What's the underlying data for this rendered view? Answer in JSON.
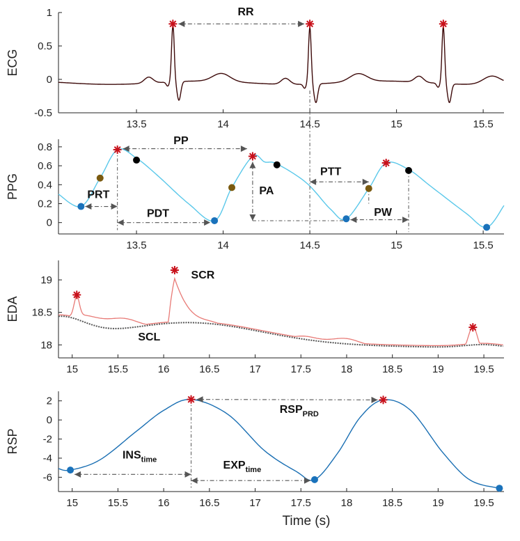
{
  "chart_data": [
    {
      "type": "line",
      "id": "ecg",
      "ylabel": "ECG",
      "xlim": [
        13.05,
        15.62
      ],
      "ylim": [
        -0.5,
        1
      ],
      "xticks": [
        "13.5",
        "14",
        "14.5",
        "15",
        "15.5"
      ],
      "xtick_values": [
        13.5,
        14,
        14.5,
        15,
        15.5
      ],
      "yticks": [
        "-0.5",
        "0",
        "0.5",
        "1"
      ],
      "ytick_values": [
        -0.5,
        0,
        0.5,
        1
      ],
      "color": "#3d0a0a",
      "r_peaks_x": [
        13.71,
        14.5,
        15.27
      ],
      "r_peak_y": 0.83,
      "annotations": [
        {
          "label": "RR",
          "x": 14.1,
          "y": 0.96
        }
      ]
    },
    {
      "type": "line",
      "id": "ppg",
      "ylabel": "PPG",
      "xlim": [
        13.05,
        15.62
      ],
      "ylim": [
        -0.12,
        0.88
      ],
      "xticks": [
        "13.5",
        "14",
        "14.5",
        "15",
        "15.5"
      ],
      "xtick_values": [
        13.5,
        14,
        14.5,
        15,
        15.5
      ],
      "yticks": [
        "0",
        "0.2",
        "0.4",
        "0.6",
        "0.8"
      ],
      "ytick_values": [
        0,
        0.2,
        0.4,
        0.6,
        0.8
      ],
      "color": "#5ac8ea",
      "feet": [
        {
          "x": 13.18,
          "y": 0.17
        },
        {
          "x": 13.95,
          "y": 0.02
        },
        {
          "x": 14.71,
          "y": 0.04
        },
        {
          "x": 15.52,
          "y": -0.05
        }
      ],
      "peaks": [
        {
          "x": 13.39,
          "y": 0.77
        },
        {
          "x": 14.17,
          "y": 0.7
        },
        {
          "x": 14.94,
          "y": 0.63
        }
      ],
      "dicrotic_notches": [
        {
          "x": 13.5,
          "y": 0.66
        },
        {
          "x": 14.31,
          "y": 0.61
        },
        {
          "x": 15.07,
          "y": 0.55
        }
      ],
      "mid_upstroke": [
        {
          "x": 13.29,
          "y": 0.47
        },
        {
          "x": 14.05,
          "y": 0.37
        },
        {
          "x": 14.84,
          "y": 0.36
        }
      ],
      "annotations": [
        {
          "label": "PP",
          "x": 13.77,
          "y": 0.82
        },
        {
          "label": "PRT",
          "x": 13.26,
          "y": 0.3
        },
        {
          "label": "PDT",
          "x": 13.66,
          "y": 0.11
        },
        {
          "label": "PA",
          "x": 14.24,
          "y": 0.32
        },
        {
          "label": "PTT",
          "x": 14.67,
          "y": 0.5
        },
        {
          "label": "PW",
          "x": 14.9,
          "y": 0.11
        }
      ]
    },
    {
      "type": "line",
      "id": "eda",
      "ylabel": "EDA",
      "xlim": [
        14.85,
        19.72
      ],
      "ylim": [
        17.8,
        19.3
      ],
      "xticks": [
        "15",
        "15.5",
        "16",
        "16.5",
        "17",
        "17.5",
        "18",
        "18.5",
        "19",
        "19.5"
      ],
      "xtick_values": [
        15,
        15.5,
        16,
        16.5,
        17,
        17.5,
        18,
        18.5,
        19,
        19.5
      ],
      "yticks": [
        "18",
        "18.5",
        "19"
      ],
      "ytick_values": [
        18,
        18.5,
        19
      ],
      "series": [
        {
          "name": "EDA",
          "color": "#e87a76"
        },
        {
          "name": "SCL",
          "color": "#555555"
        }
      ],
      "scr_peaks": [
        {
          "x": 15.05,
          "y": 18.77
        },
        {
          "x": 16.12,
          "y": 19.15
        },
        {
          "x": 19.38,
          "y": 18.27
        }
      ],
      "annotations": [
        {
          "label": "SCR",
          "x": 16.37,
          "y": 19.02
        },
        {
          "label": "SCL",
          "x": 15.75,
          "y": 18.07
        }
      ]
    },
    {
      "type": "line",
      "id": "rsp",
      "ylabel": "RSP",
      "xlabel": "Time (s)",
      "xlim": [
        14.85,
        19.72
      ],
      "ylim": [
        -7.5,
        3
      ],
      "xticks": [
        "15",
        "15.5",
        "16",
        "16.5",
        "17",
        "17.5",
        "18",
        "18.5",
        "19",
        "19.5"
      ],
      "xtick_values": [
        15,
        15.5,
        16,
        16.5,
        17,
        17.5,
        18,
        18.5,
        19,
        19.5
      ],
      "yticks": [
        "-6",
        "-4",
        "-2",
        "0",
        "2"
      ],
      "ytick_values": [
        -6,
        -4,
        -2,
        0,
        2
      ],
      "color": "#1a6fb3",
      "troughs": [
        {
          "x": 14.98,
          "y": -5.25
        },
        {
          "x": 17.65,
          "y": -6.25
        },
        {
          "x": 19.67,
          "y": -7.15
        }
      ],
      "peaks": [
        {
          "x": 16.3,
          "y": 2.15
        },
        {
          "x": 18.4,
          "y": 2.1
        }
      ],
      "annotations": [
        {
          "label": "RSP",
          "sub": "PRD",
          "x": 17.42,
          "y": 0.9
        },
        {
          "label": "INS",
          "sub": "time",
          "x": 15.55,
          "y": -3.9
        },
        {
          "label": "EXP",
          "sub": "time",
          "x": 16.65,
          "y": -5.25
        }
      ]
    }
  ]
}
